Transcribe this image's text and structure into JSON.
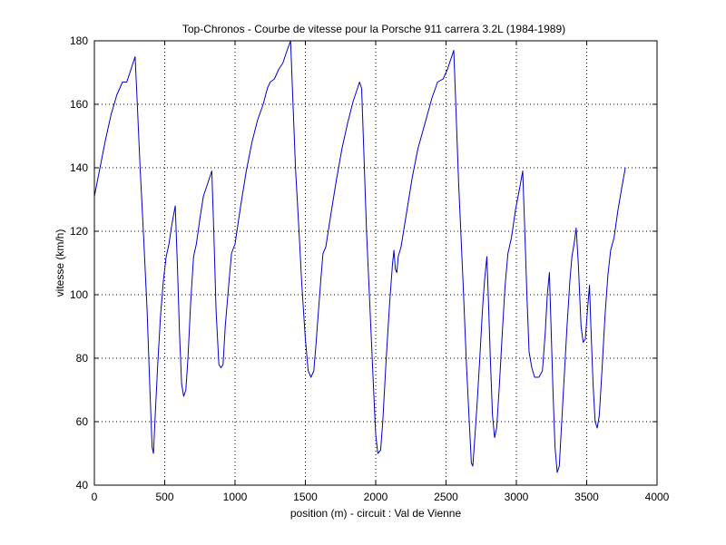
{
  "chart_data": {
    "type": "line",
    "title": "Top-Chronos - Courbe de vitesse pour la Porsche 911 carrera 3.2L (1984-1989)",
    "xlabel": "position (m) - circuit : Val de Vienne",
    "ylabel": "vitesse (km/h)",
    "xlim": [
      0,
      4000
    ],
    "ylim": [
      40,
      180
    ],
    "xticks": [
      0,
      500,
      1000,
      1500,
      2000,
      2500,
      3000,
      3500,
      4000
    ],
    "yticks": [
      40,
      60,
      80,
      100,
      120,
      140,
      160,
      180
    ],
    "grid": true,
    "series": [
      {
        "color": "#0000cc",
        "points": [
          [
            0,
            131
          ],
          [
            40,
            140
          ],
          [
            80,
            149
          ],
          [
            120,
            157
          ],
          [
            160,
            163
          ],
          [
            200,
            167
          ],
          [
            230,
            167
          ],
          [
            260,
            171
          ],
          [
            290,
            175
          ],
          [
            305,
            160
          ],
          [
            325,
            140
          ],
          [
            350,
            118
          ],
          [
            375,
            95
          ],
          [
            395,
            70
          ],
          [
            410,
            52
          ],
          [
            420,
            50
          ],
          [
            430,
            60
          ],
          [
            450,
            78
          ],
          [
            470,
            93
          ],
          [
            490,
            104
          ],
          [
            510,
            112
          ],
          [
            530,
            116
          ],
          [
            550,
            122
          ],
          [
            575,
            128
          ],
          [
            590,
            110
          ],
          [
            605,
            88
          ],
          [
            620,
            72
          ],
          [
            635,
            68
          ],
          [
            650,
            70
          ],
          [
            665,
            80
          ],
          [
            685,
            98
          ],
          [
            705,
            112
          ],
          [
            725,
            116
          ],
          [
            750,
            124
          ],
          [
            775,
            131
          ],
          [
            805,
            135
          ],
          [
            835,
            139
          ],
          [
            850,
            118
          ],
          [
            865,
            95
          ],
          [
            885,
            78
          ],
          [
            900,
            77
          ],
          [
            915,
            78
          ],
          [
            930,
            90
          ],
          [
            955,
            103
          ],
          [
            975,
            113
          ],
          [
            1000,
            116
          ],
          [
            1040,
            128
          ],
          [
            1080,
            139
          ],
          [
            1120,
            148
          ],
          [
            1160,
            155
          ],
          [
            1200,
            160
          ],
          [
            1230,
            165
          ],
          [
            1250,
            167
          ],
          [
            1280,
            168
          ],
          [
            1310,
            171
          ],
          [
            1340,
            173
          ],
          [
            1370,
            177
          ],
          [
            1395,
            180
          ],
          [
            1410,
            163
          ],
          [
            1430,
            140
          ],
          [
            1455,
            120
          ],
          [
            1475,
            103
          ],
          [
            1500,
            86
          ],
          [
            1520,
            76
          ],
          [
            1540,
            74
          ],
          [
            1560,
            76
          ],
          [
            1575,
            84
          ],
          [
            1595,
            96
          ],
          [
            1610,
            105
          ],
          [
            1625,
            113
          ],
          [
            1645,
            115
          ],
          [
            1680,
            125
          ],
          [
            1720,
            136
          ],
          [
            1760,
            146
          ],
          [
            1800,
            154
          ],
          [
            1840,
            161
          ],
          [
            1870,
            165
          ],
          [
            1885,
            167
          ],
          [
            1900,
            165
          ],
          [
            1915,
            146
          ],
          [
            1935,
            120
          ],
          [
            1960,
            95
          ],
          [
            1985,
            70
          ],
          [
            2000,
            56
          ],
          [
            2015,
            50
          ],
          [
            2035,
            51
          ],
          [
            2050,
            60
          ],
          [
            2075,
            80
          ],
          [
            2100,
            98
          ],
          [
            2120,
            110
          ],
          [
            2130,
            114
          ],
          [
            2140,
            108
          ],
          [
            2150,
            107
          ],
          [
            2160,
            112
          ],
          [
            2180,
            115
          ],
          [
            2220,
            126
          ],
          [
            2260,
            137
          ],
          [
            2300,
            146
          ],
          [
            2350,
            154
          ],
          [
            2400,
            162
          ],
          [
            2440,
            167
          ],
          [
            2480,
            168
          ],
          [
            2510,
            171
          ],
          [
            2540,
            175
          ],
          [
            2555,
            177
          ],
          [
            2565,
            165
          ],
          [
            2590,
            135
          ],
          [
            2620,
            105
          ],
          [
            2645,
            78
          ],
          [
            2665,
            60
          ],
          [
            2680,
            47
          ],
          [
            2690,
            46
          ],
          [
            2700,
            52
          ],
          [
            2720,
            65
          ],
          [
            2740,
            80
          ],
          [
            2760,
            96
          ],
          [
            2775,
            105
          ],
          [
            2790,
            112
          ],
          [
            2800,
            100
          ],
          [
            2815,
            80
          ],
          [
            2830,
            62
          ],
          [
            2845,
            55
          ],
          [
            2860,
            58
          ],
          [
            2880,
            72
          ],
          [
            2900,
            88
          ],
          [
            2920,
            103
          ],
          [
            2940,
            113
          ],
          [
            2965,
            118
          ],
          [
            2995,
            127
          ],
          [
            3025,
            134
          ],
          [
            3045,
            139
          ],
          [
            3060,
            120
          ],
          [
            3075,
            100
          ],
          [
            3090,
            82
          ],
          [
            3110,
            77
          ],
          [
            3130,
            74
          ],
          [
            3160,
            74
          ],
          [
            3185,
            76
          ],
          [
            3205,
            88
          ],
          [
            3220,
            100
          ],
          [
            3235,
            107
          ],
          [
            3245,
            92
          ],
          [
            3260,
            70
          ],
          [
            3275,
            52
          ],
          [
            3290,
            44
          ],
          [
            3305,
            46
          ],
          [
            3320,
            58
          ],
          [
            3340,
            74
          ],
          [
            3360,
            90
          ],
          [
            3380,
            104
          ],
          [
            3395,
            112
          ],
          [
            3410,
            116
          ],
          [
            3425,
            121
          ],
          [
            3440,
            110
          ],
          [
            3460,
            90
          ],
          [
            3475,
            85
          ],
          [
            3490,
            86
          ],
          [
            3505,
            95
          ],
          [
            3520,
            103
          ],
          [
            3530,
            90
          ],
          [
            3545,
            72
          ],
          [
            3560,
            60
          ],
          [
            3575,
            58
          ],
          [
            3590,
            62
          ],
          [
            3610,
            77
          ],
          [
            3630,
            93
          ],
          [
            3650,
            106
          ],
          [
            3670,
            114
          ],
          [
            3695,
            118
          ],
          [
            3720,
            126
          ],
          [
            3750,
            134
          ],
          [
            3775,
            140
          ]
        ]
      }
    ]
  }
}
